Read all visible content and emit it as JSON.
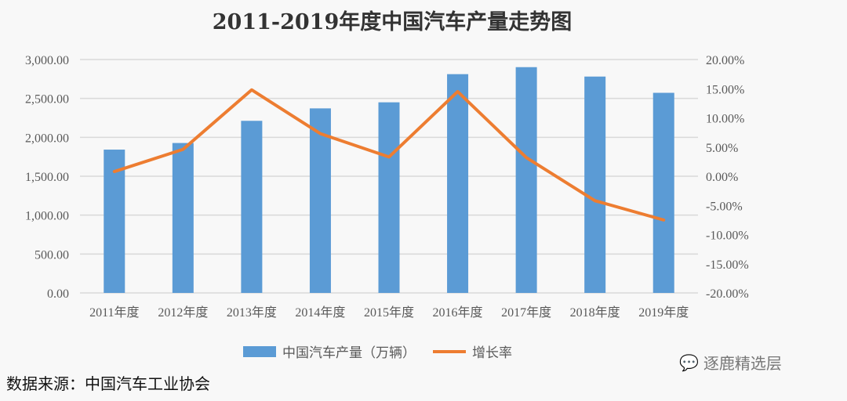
{
  "chart_data": {
    "type": "bar+line",
    "title": "2011-2019年度中国汽车产量走势图",
    "categories": [
      "2011年度",
      "2012年度",
      "2013年度",
      "2014年度",
      "2015年度",
      "2016年度",
      "2017年度",
      "2018年度",
      "2019年度"
    ],
    "series": [
      {
        "name": "中国汽车产量（万辆）",
        "type": "bar",
        "axis": "left",
        "color": "#5b9bd5",
        "values": [
          1842,
          1927,
          2212,
          2372,
          2450,
          2812,
          2902,
          2781,
          2572
        ]
      },
      {
        "name": "增长率",
        "type": "line",
        "axis": "right",
        "color": "#ed7d31",
        "values": [
          0.8,
          4.6,
          14.8,
          7.3,
          3.3,
          14.5,
          3.2,
          -4.2,
          -7.5
        ]
      }
    ],
    "ylim_left": [
      0,
      3000
    ],
    "yticks_left": [
      "0.00",
      "500.00",
      "1,000.00",
      "1,500.00",
      "2,000.00",
      "2,500.00",
      "3,000.00"
    ],
    "ylim_right": [
      -20,
      20
    ],
    "yticks_right": [
      "-20.00%",
      "-15.00%",
      "-10.00%",
      "-5.00%",
      "0.00%",
      "5.00%",
      "10.00%",
      "15.00%",
      "20.00%"
    ],
    "grid": true,
    "legend": "bottom"
  },
  "source": "数据来源：中国汽车工业协会",
  "watermark": "逐鹿精选层"
}
